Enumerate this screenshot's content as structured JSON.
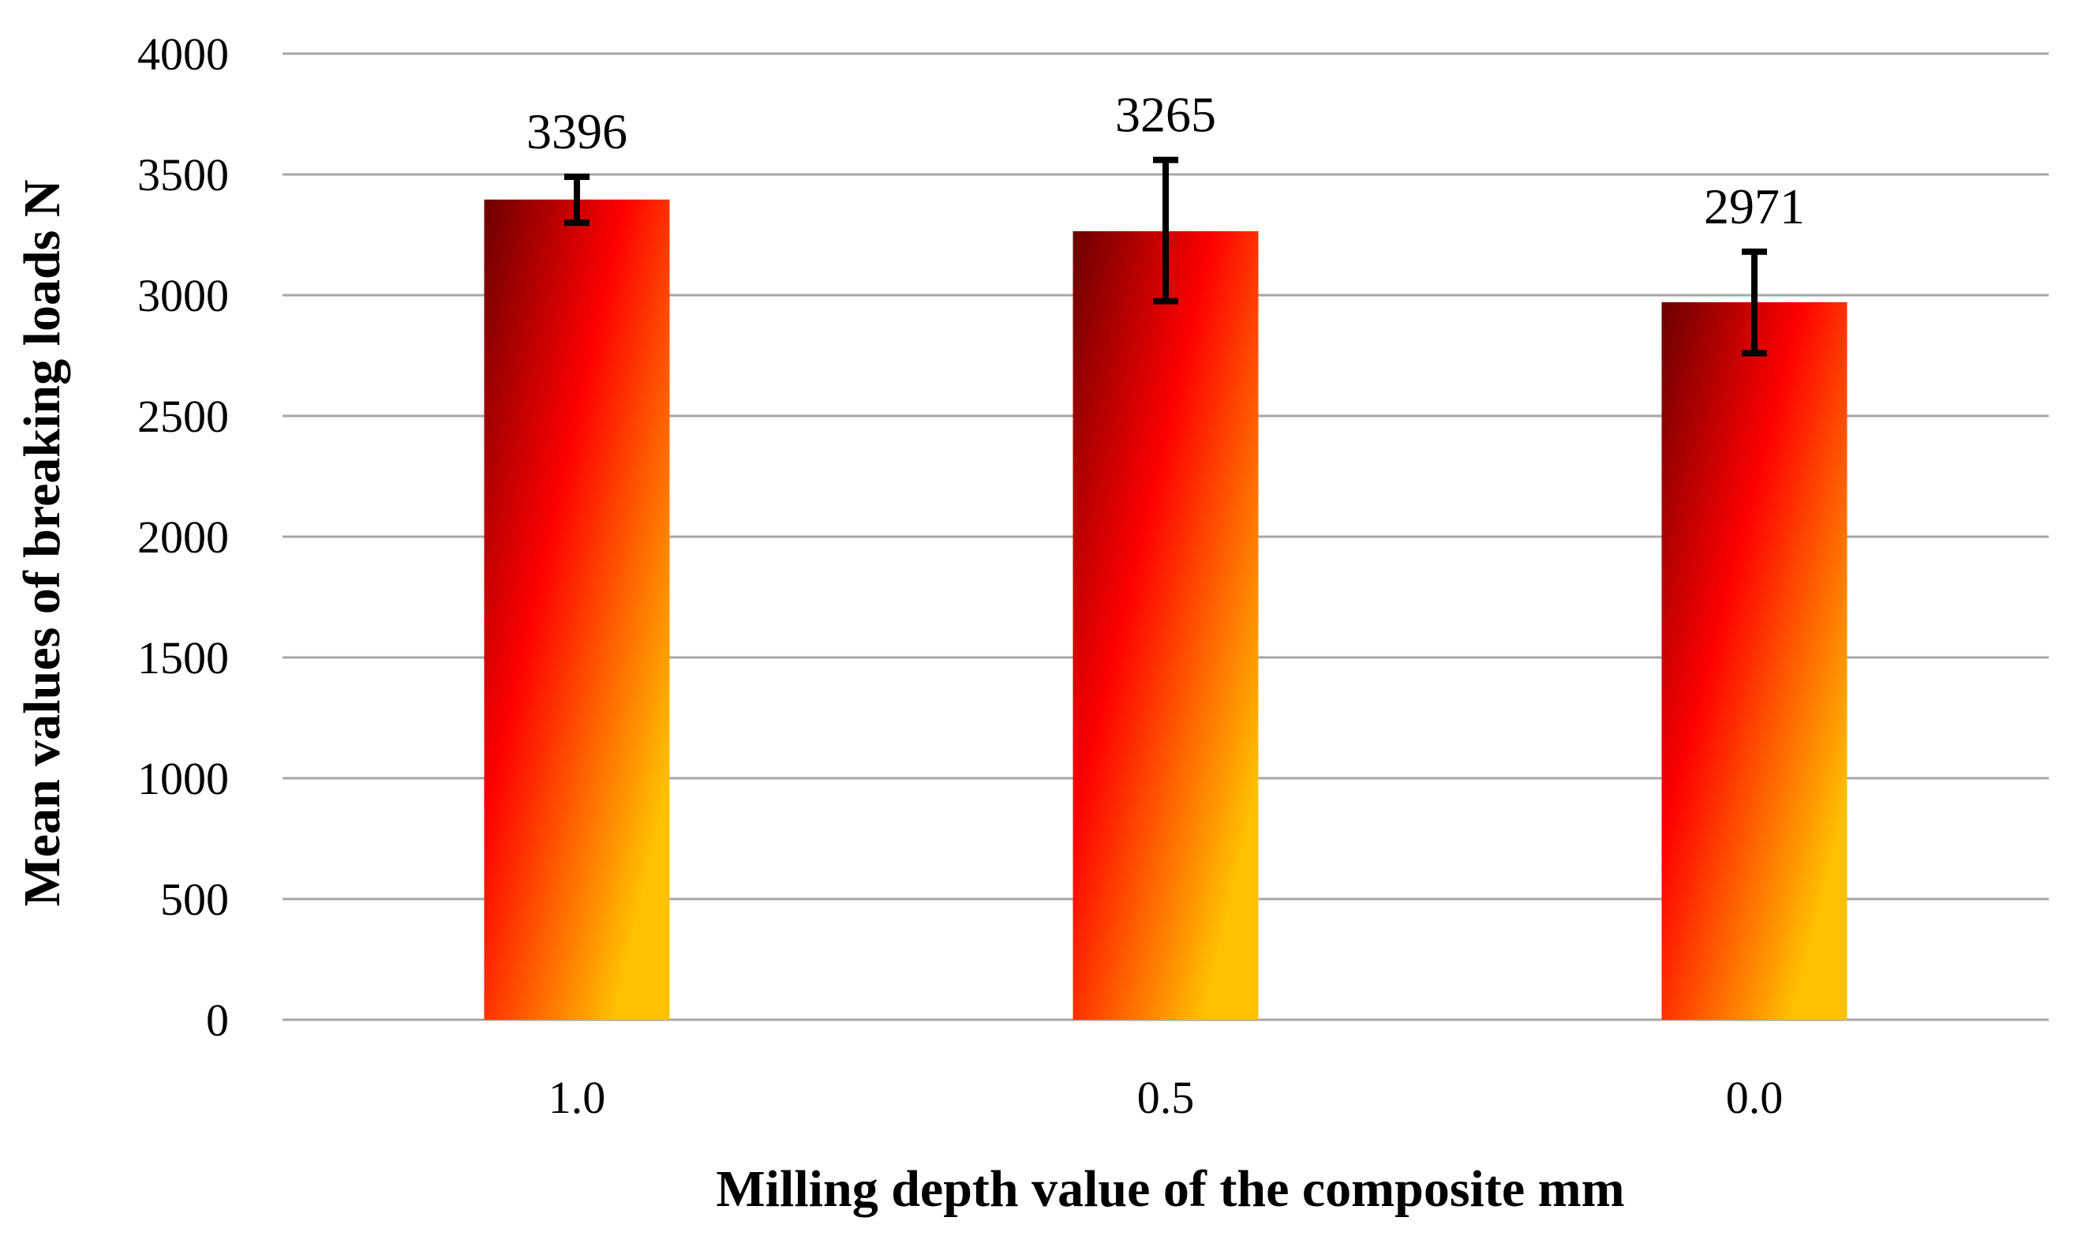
{
  "chart_data": {
    "type": "bar",
    "title": "",
    "xlabel": "Milling depth value of the composite mm",
    "ylabel": "Mean values of breaking loads N",
    "categories": [
      "1.0",
      "0.5",
      "0.0"
    ],
    "values": [
      3396,
      3265,
      2971
    ],
    "value_labels": [
      "3396",
      "3265",
      "2971"
    ],
    "error_low": [
      3300,
      2975,
      2760
    ],
    "error_high": [
      3490,
      3560,
      3180
    ],
    "ylim": [
      0,
      4000
    ],
    "yticks": [
      0,
      500,
      1000,
      1500,
      2000,
      2500,
      3000,
      3500,
      4000
    ],
    "ytick_labels": [
      "0",
      "500",
      "1000",
      "1500",
      "2000",
      "2500",
      "3000",
      "3500",
      "4000"
    ],
    "grid": true,
    "legend": "none",
    "colors": {
      "gradient_top": "#6b0000",
      "gradient_mid": "#ff0000",
      "gradient_bottom": "#ffc000",
      "gridline": "#a6a6a6",
      "error_bar": "#000000"
    }
  }
}
